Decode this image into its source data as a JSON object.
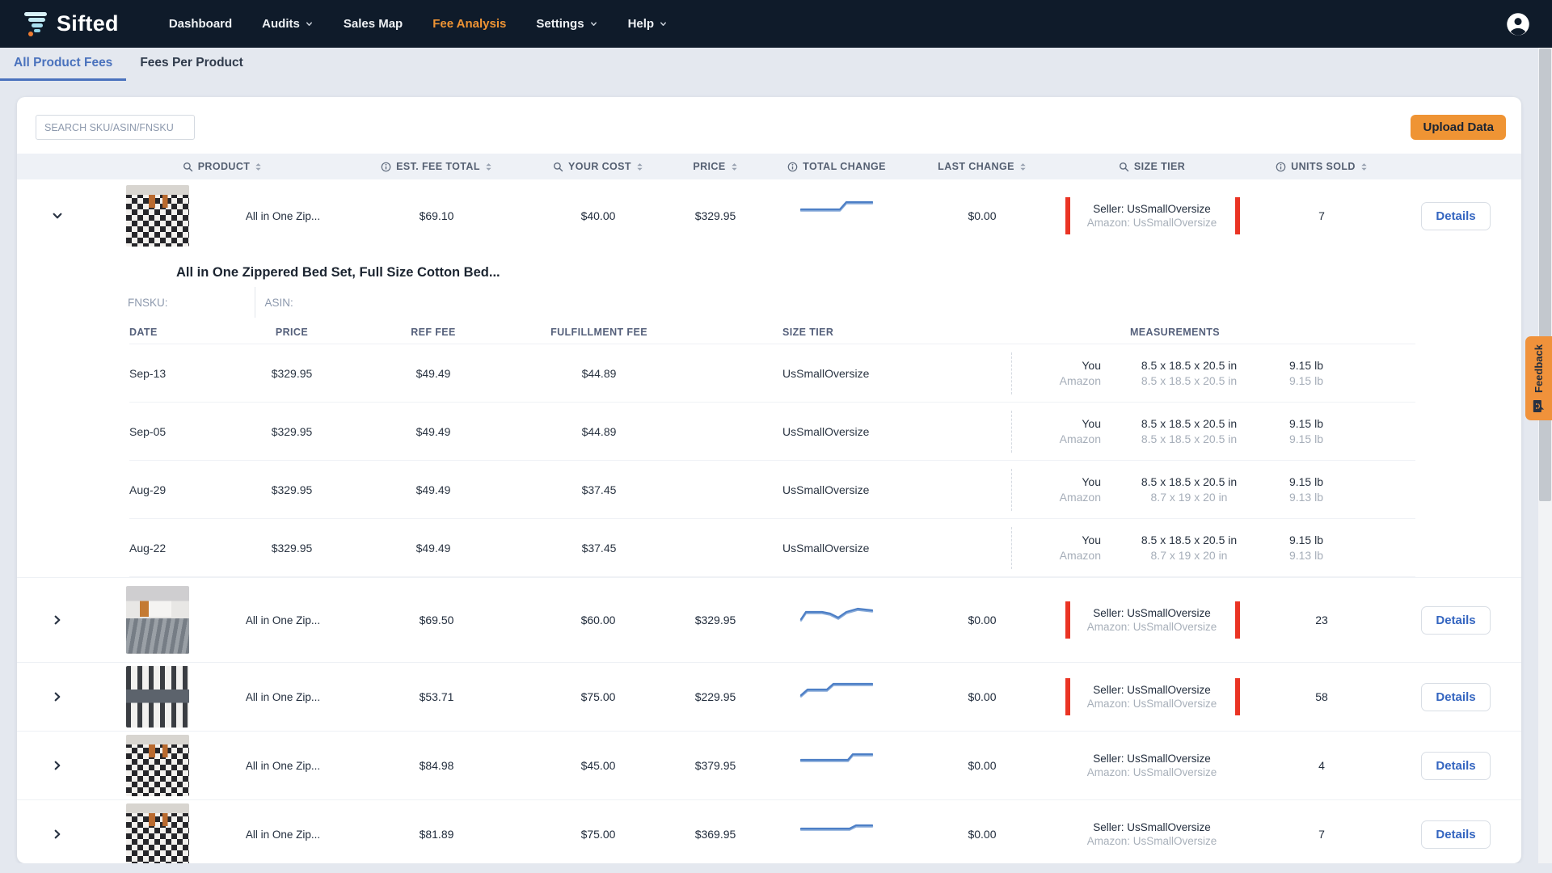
{
  "nav": {
    "brand": "Sifted",
    "items": [
      {
        "label": "Dashboard",
        "active": false,
        "caret": false
      },
      {
        "label": "Audits",
        "active": false,
        "caret": true
      },
      {
        "label": "Sales Map",
        "active": false,
        "caret": false
      },
      {
        "label": "Fee Analysis",
        "active": true,
        "caret": false
      },
      {
        "label": "Settings",
        "active": false,
        "caret": true
      },
      {
        "label": "Help",
        "active": false,
        "caret": true
      }
    ]
  },
  "tabs": [
    {
      "label": "All Product Fees",
      "active": true
    },
    {
      "label": "Fees Per Product",
      "active": false
    }
  ],
  "toolbar": {
    "search_placeholder": "SEARCH SKU/ASIN/FNSKU",
    "upload_label": "Upload Data"
  },
  "table": {
    "details_label": "Details",
    "headers": [
      {
        "label": "PRODUCT",
        "search": true,
        "info": false,
        "sort": true
      },
      {
        "label": "EST. FEE TOTAL",
        "search": false,
        "info": true,
        "sort": true
      },
      {
        "label": "YOUR COST",
        "search": true,
        "info": false,
        "sort": true
      },
      {
        "label": "PRICE",
        "search": false,
        "info": false,
        "sort": true
      },
      {
        "label": "TOTAL CHANGE",
        "search": false,
        "info": true,
        "sort": false
      },
      {
        "label": "LAST CHANGE",
        "search": false,
        "info": false,
        "sort": true
      },
      {
        "label": "SIZE TIER",
        "search": true,
        "info": false,
        "sort": false
      },
      {
        "label": "UNITS SOLD",
        "search": false,
        "info": true,
        "sort": true
      }
    ],
    "rows": [
      {
        "name": "All in One Zip...",
        "est_fee_total": "$69.10",
        "your_cost": "$40.00",
        "price": "$329.95",
        "last_change": "$0.00",
        "seller": "Seller: UsSmallOversize",
        "amazon": "Amazon: UsSmallOversize",
        "size_alert": true,
        "units_sold": "7",
        "expanded": true,
        "image": "plaid-bedding",
        "spark": [
          [
            0,
            15
          ],
          [
            48,
            15
          ],
          [
            56,
            6
          ],
          [
            88,
            6
          ]
        ]
      },
      {
        "name": "All in One Zip...",
        "est_fee_total": "$69.50",
        "your_cost": "$60.00",
        "price": "$329.95",
        "last_change": "$0.00",
        "seller": "Seller: UsSmallOversize",
        "amazon": "Amazon: UsSmallOversize",
        "size_alert": true,
        "units_sold": "23",
        "expanded": false,
        "image": "gray-bedding",
        "spark": [
          [
            0,
            22
          ],
          [
            6,
            13
          ],
          [
            26,
            13
          ],
          [
            36,
            15
          ],
          [
            46,
            20
          ],
          [
            56,
            13
          ],
          [
            70,
            9
          ],
          [
            88,
            11
          ]
        ]
      },
      {
        "name": "All in One Zip...",
        "est_fee_total": "$53.71",
        "your_cost": "$75.00",
        "price": "$229.95",
        "last_change": "$0.00",
        "seller": "Seller: UsSmallOversize",
        "amazon": "Amazon: UsSmallOversize",
        "size_alert": true,
        "units_sold": "58",
        "expanded": false,
        "image": "stripe-bedding",
        "spark": [
          [
            0,
            21
          ],
          [
            8,
            14
          ],
          [
            32,
            14
          ],
          [
            40,
            7
          ],
          [
            88,
            7
          ]
        ]
      },
      {
        "name": "All in One Zip...",
        "est_fee_total": "$84.98",
        "your_cost": "$45.00",
        "price": "$379.95",
        "last_change": "$0.00",
        "seller": "Seller: UsSmallOversize",
        "amazon": "Amazon: UsSmallOversize",
        "size_alert": false,
        "units_sold": "4",
        "expanded": false,
        "image": "plaid-bedding",
        "spark": [
          [
            0,
            16
          ],
          [
            58,
            16
          ],
          [
            64,
            9
          ],
          [
            88,
            9
          ]
        ]
      },
      {
        "name": "All in One Zip...",
        "est_fee_total": "$81.89",
        "your_cost": "$75.00",
        "price": "$369.95",
        "last_change": "$0.00",
        "seller": "Seller: UsSmallOversize",
        "amazon": "Amazon: UsSmallOversize",
        "size_alert": false,
        "units_sold": "7",
        "expanded": false,
        "image": "plaid-bedding",
        "spark": [
          [
            0,
            16
          ],
          [
            60,
            16
          ],
          [
            68,
            12
          ],
          [
            88,
            12
          ]
        ]
      }
    ]
  },
  "expanded_panel": {
    "title": "All in One Zippered Bed Set, Full Size Cotton Bed...",
    "fnsku_label": "FNSKU:",
    "fnsku_value": "",
    "asin_label": "ASIN:",
    "asin_value": "",
    "headers": {
      "date": "DATE",
      "price": "PRICE",
      "ref_fee": "REF FEE",
      "fulfillment_fee": "FULFILLMENT FEE",
      "size_tier": "SIZE TIER",
      "measurements": "MEASUREMENTS"
    },
    "you_label": "You",
    "amazon_label": "Amazon",
    "rows": [
      {
        "date": "Sep-13",
        "price": "$329.95",
        "ref_fee": "$49.49",
        "fulfillment_fee": "$44.89",
        "size_tier": "UsSmallOversize",
        "you_dims": "8.5 x 18.5 x 20.5 in",
        "you_weight": "9.15 lb",
        "amazon_dims": "8.5 x 18.5 x 20.5 in",
        "amazon_weight": "9.15 lb"
      },
      {
        "date": "Sep-05",
        "price": "$329.95",
        "ref_fee": "$49.49",
        "fulfillment_fee": "$44.89",
        "size_tier": "UsSmallOversize",
        "you_dims": "8.5 x 18.5 x 20.5 in",
        "you_weight": "9.15 lb",
        "amazon_dims": "8.5 x 18.5 x 20.5 in",
        "amazon_weight": "9.15 lb"
      },
      {
        "date": "Aug-29",
        "price": "$329.95",
        "ref_fee": "$49.49",
        "fulfillment_fee": "$37.45",
        "size_tier": "UsSmallOversize",
        "you_dims": "8.5 x 18.5 x 20.5 in",
        "you_weight": "9.15 lb",
        "amazon_dims": "8.7 x 19 x 20 in",
        "amazon_weight": "9.13 lb"
      },
      {
        "date": "Aug-22",
        "price": "$329.95",
        "ref_fee": "$49.49",
        "fulfillment_fee": "$37.45",
        "size_tier": "UsSmallOversize",
        "you_dims": "8.5 x 18.5 x 20.5 in",
        "you_weight": "9.15 lb",
        "amazon_dims": "8.7 x 19 x 20 in",
        "amazon_weight": "9.13 lb"
      }
    ]
  },
  "feedback": {
    "label": "Feedback"
  },
  "icons": {
    "search": "magnifier-icon",
    "info": "info-circle-icon",
    "sort": "sort-arrows-icon",
    "account": "account-circle-icon",
    "expand": "chevron-icon",
    "feedback": "chat-smiley-icon"
  },
  "colors": {
    "nav_background": "#0f1b2a",
    "accent_orange": "#ef9434",
    "active_tab_blue": "#4a72bd",
    "details_blue": "#3465c0",
    "alert_red": "#ea3424",
    "sparkline_blue": "#4d7fc6",
    "page_background": "#e4e8ef"
  }
}
